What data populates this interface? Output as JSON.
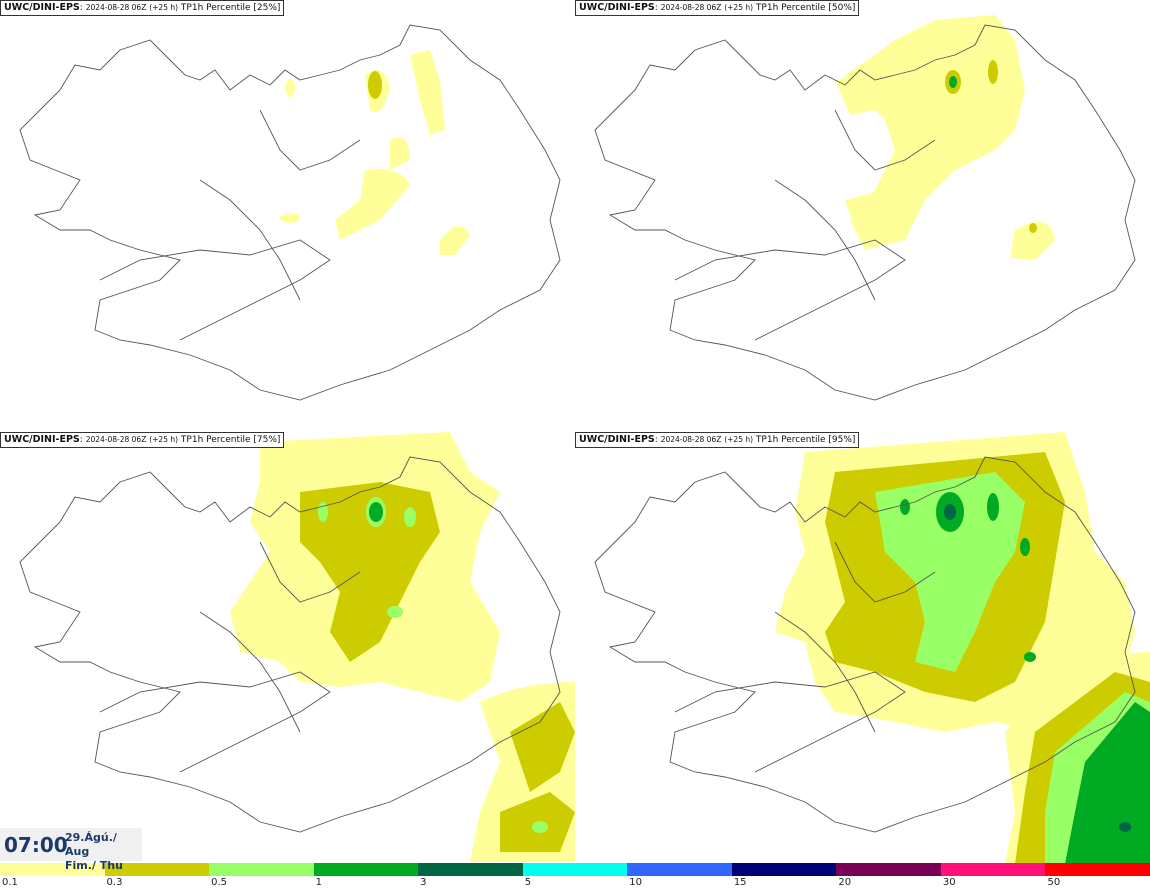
{
  "panels": [
    {
      "source": "UWC/DINI-EPS",
      "run": "2024-08-28 06Z",
      "lead": "(+25 h)",
      "field": "TP1h Percentile [25%]"
    },
    {
      "source": "UWC/DINI-EPS",
      "run": "2024-08-28 06Z",
      "lead": "(+25 h)",
      "field": "TP1h Percentile [50%]"
    },
    {
      "source": "UWC/DINI-EPS",
      "run": "2024-08-28 06Z",
      "lead": "(+25 h)",
      "field": "TP1h Percentile [75%]"
    },
    {
      "source": "UWC/DINI-EPS",
      "run": "2024-08-28 06Z",
      "lead": "(+25 h)",
      "field": "TP1h Percentile [95%]"
    }
  ],
  "valid_time": {
    "time": "07:00",
    "date_line": "29.Ágú./ Aug",
    "day_line": "Fim./ Thu"
  },
  "legend": {
    "ticks": [
      "0.1",
      "0.3",
      "0.5",
      "1",
      "3",
      "5",
      "10",
      "15",
      "20",
      "30",
      "50"
    ],
    "colors": [
      "#ffff99",
      "#cccc00",
      "#99ff66",
      "#00aa22",
      "#006644",
      "#00ffee",
      "#3366ff",
      "#000077",
      "#770055",
      "#ff1177",
      "#ff0000"
    ]
  }
}
